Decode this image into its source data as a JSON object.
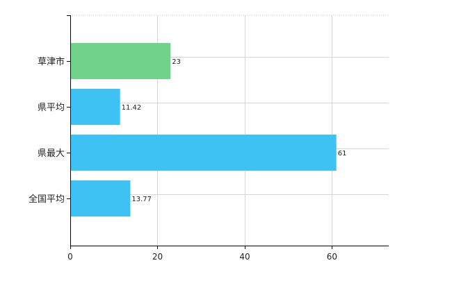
{
  "chart_data": {
    "type": "bar",
    "orientation": "horizontal",
    "categories": [
      "草津市",
      "県平均",
      "県最大",
      "全国平均"
    ],
    "values": [
      23,
      11.42,
      61,
      13.77
    ],
    "value_labels": [
      "23",
      "11.42",
      "61",
      "13.77"
    ],
    "bar_colors": [
      "#6fd38a",
      "#3ec1f3",
      "#3ec1f3",
      "#3ec1f3"
    ],
    "xlim": [
      0,
      73
    ],
    "xticks": [
      0,
      20,
      40,
      60
    ],
    "xtick_labels": [
      "0",
      "20",
      "40",
      "60"
    ],
    "grid": true,
    "title": "",
    "xlabel": "",
    "ylabel": ""
  }
}
